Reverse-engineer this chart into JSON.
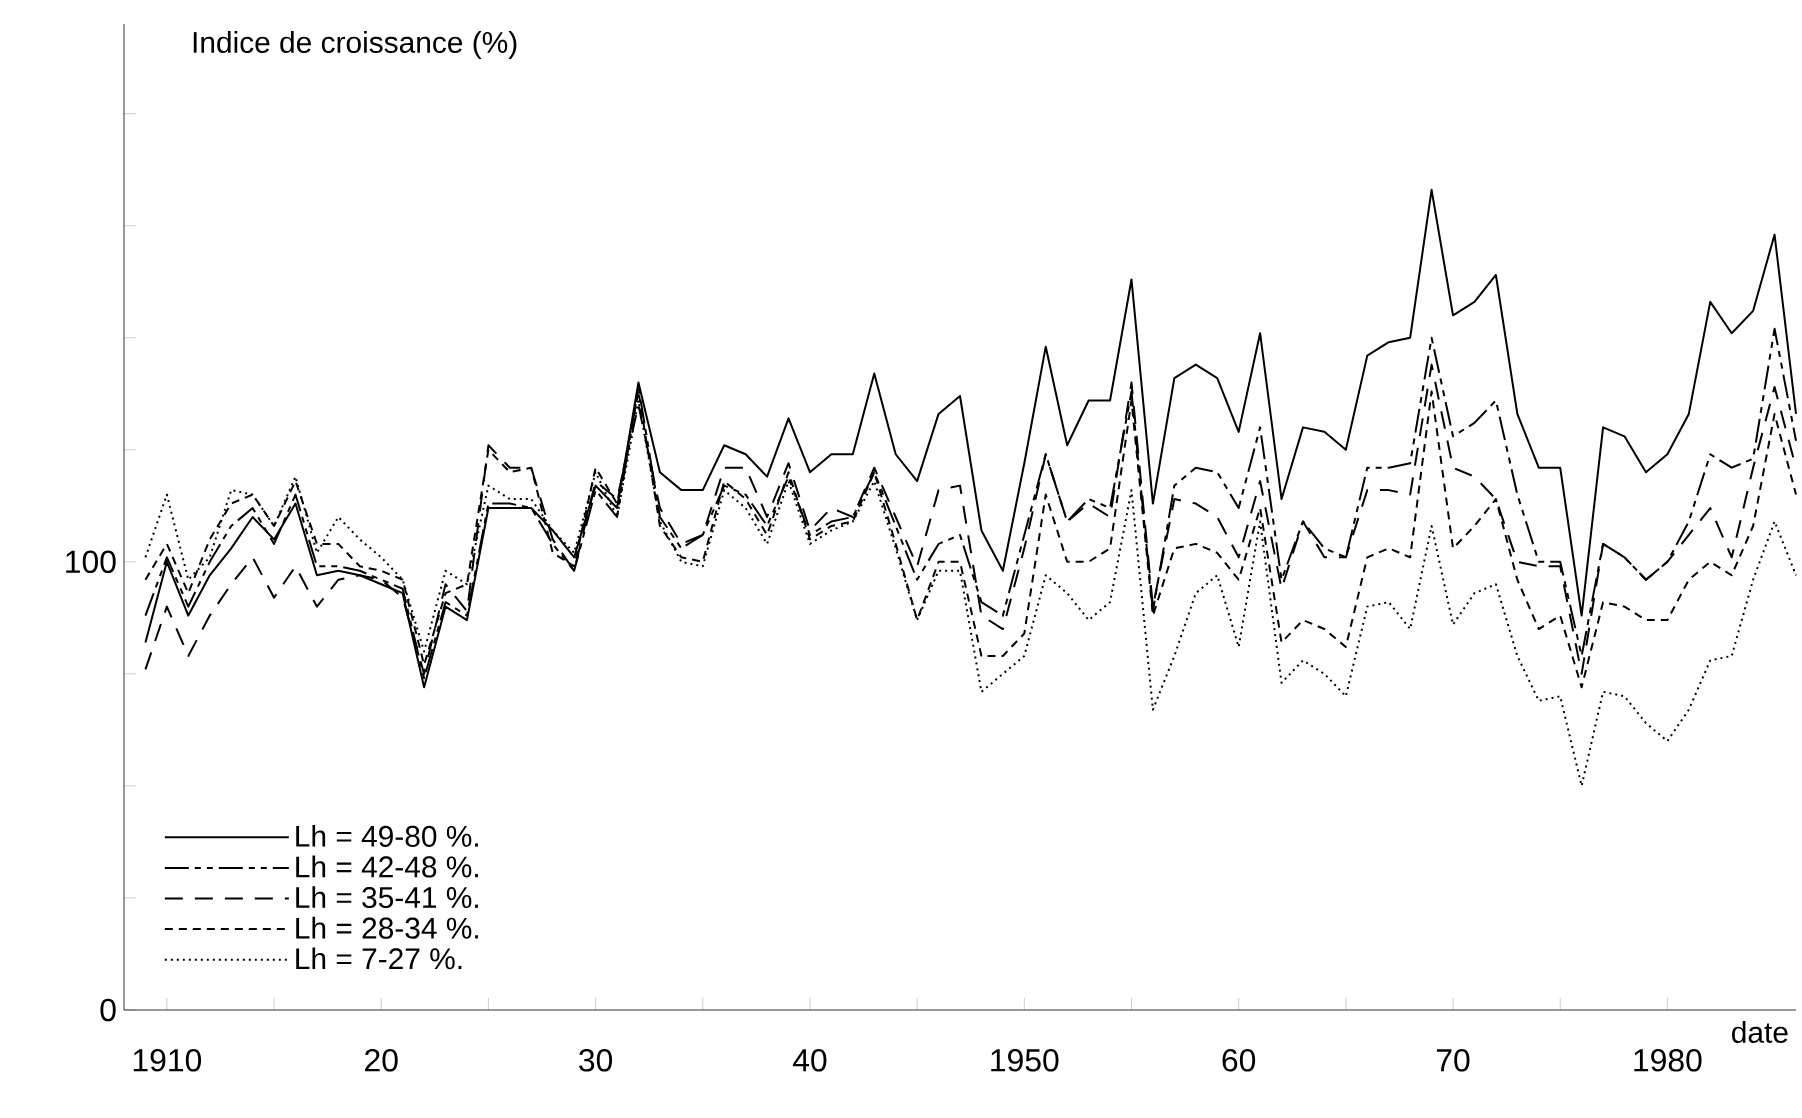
{
  "chart_data": {
    "type": "line",
    "ylabel": "Indice de croissance (%)",
    "xlabel": "date",
    "x": [
      1909,
      1910,
      1911,
      1912,
      1913,
      1914,
      1915,
      1916,
      1917,
      1918,
      1919,
      1920,
      1921,
      1922,
      1923,
      1924,
      1925,
      1926,
      1927,
      1928,
      1929,
      1930,
      1931,
      1932,
      1933,
      1934,
      1935,
      1936,
      1937,
      1938,
      1939,
      1940,
      1941,
      1942,
      1943,
      1944,
      1945,
      1946,
      1947,
      1948,
      1949,
      1950,
      1951,
      1952,
      1953,
      1954,
      1955,
      1956,
      1957,
      1958,
      1959,
      1960,
      1961,
      1962,
      1963,
      1964,
      1965,
      1966,
      1967,
      1968,
      1969,
      1970,
      1971,
      1972,
      1973,
      1974,
      1975,
      1976,
      1977,
      1978,
      1979,
      1980,
      1981,
      1982,
      1983,
      1984,
      1985,
      1986
    ],
    "series": [
      {
        "name": "Lh = 49-80 %.",
        "color": "#000000",
        "line_style": "solid",
        "values": [
          82,
          100,
          88,
          97,
          103,
          110,
          105,
          113,
          97,
          98,
          97,
          95,
          93,
          72,
          90,
          87,
          112,
          112,
          112,
          107,
          101,
          117,
          112,
          140,
          120,
          116,
          116,
          126,
          124,
          119,
          132,
          120,
          124,
          124,
          142,
          124,
          118,
          133,
          137,
          107,
          98,
          122,
          148,
          126,
          136,
          136,
          163,
          113,
          141,
          144,
          141,
          129,
          151,
          114,
          130,
          129,
          125,
          146,
          149,
          150,
          183,
          155,
          158,
          164,
          133,
          121,
          121,
          88,
          130,
          128,
          120,
          124,
          133,
          158,
          151,
          156,
          173,
          133
        ]
      },
      {
        "name": "Lh = 42-48 %.",
        "color": "#000000",
        "line_style": "dashdot",
        "values": [
          88,
          101,
          90,
          100,
          108,
          112,
          104,
          115,
          99,
          99,
          98,
          96,
          94,
          74,
          91,
          88,
          113,
          113,
          112,
          104,
          98,
          116,
          110,
          139,
          110,
          103,
          106,
          117,
          115,
          108,
          119,
          106,
          109,
          110,
          120,
          108,
          96,
          104,
          106,
          91,
          88,
          106,
          124,
          109,
          114,
          112,
          138,
          89,
          117,
          121,
          120,
          112,
          130,
          96,
          109,
          103,
          101,
          121,
          121,
          122,
          150,
          128,
          131,
          136,
          115,
          100,
          100,
          79,
          104,
          101,
          96,
          100,
          109,
          124,
          121,
          123,
          152,
          127
        ]
      },
      {
        "name": "Lh = 35-41 %.",
        "color": "#000000",
        "line_style": "longdash",
        "values": [
          76,
          90,
          79,
          88,
          95,
          101,
          92,
          99,
          90,
          96,
          97,
          96,
          92,
          75,
          95,
          89,
          126,
          121,
          121,
          105,
          98,
          118,
          114,
          135,
          112,
          104,
          106,
          121,
          121,
          110,
          122,
          107,
          112,
          110,
          121,
          110,
          99,
          116,
          117,
          88,
          85,
          103,
          124,
          109,
          113,
          110,
          140,
          90,
          114,
          113,
          110,
          101,
          118,
          94,
          109,
          101,
          101,
          116,
          116,
          115,
          144,
          121,
          119,
          114,
          100,
          99,
          99,
          75,
          104,
          101,
          96,
          100,
          106,
          112,
          101,
          121,
          139,
          121
        ]
      },
      {
        "name": "Lh = 28-34 %.",
        "color": "#000000",
        "line_style": "dashed",
        "values": [
          96,
          104,
          93,
          105,
          113,
          115,
          108,
          118,
          104,
          104,
          99,
          98,
          96,
          77,
          93,
          95,
          125,
          120,
          121,
          102,
          99,
          121,
          113,
          138,
          108,
          101,
          100,
          118,
          114,
          106,
          120,
          105,
          108,
          109,
          120,
          104,
          87,
          100,
          100,
          79,
          79,
          84,
          115,
          100,
          100,
          103,
          136,
          88,
          103,
          104,
          102,
          96,
          112,
          82,
          87,
          85,
          81,
          101,
          103,
          101,
          138,
          103,
          108,
          114,
          96,
          85,
          88,
          72,
          91,
          90,
          87,
          87,
          96,
          100,
          97,
          108,
          133,
          115
        ]
      },
      {
        "name": "Lh = 7-27 %.",
        "color": "#000000",
        "line_style": "dotted",
        "values": [
          101,
          115,
          96,
          101,
          116,
          115,
          108,
          119,
          102,
          110,
          105,
          101,
          96,
          80,
          98,
          95,
          117,
          114,
          114,
          107,
          102,
          120,
          110,
          136,
          109,
          100,
          99,
          116,
          112,
          104,
          118,
          104,
          107,
          109,
          118,
          103,
          87,
          98,
          98,
          71,
          75,
          79,
          97,
          93,
          87,
          91,
          116,
          67,
          79,
          93,
          97,
          81,
          109,
          73,
          78,
          75,
          70,
          90,
          91,
          85,
          108,
          86,
          93,
          95,
          79,
          69,
          70,
          50,
          71,
          70,
          64,
          60,
          67,
          78,
          79,
          96,
          109,
          97
        ]
      }
    ],
    "xlim": [
      1908,
      1986
    ],
    "ylim": [
      0,
      220
    ],
    "xticks": [
      1910,
      {
        "value": 1915,
        "label": null
      },
      {
        "value": 1920,
        "label": "20"
      },
      {
        "value": 1925,
        "label": null
      },
      {
        "value": 1930,
        "label": "30"
      },
      {
        "value": 1935,
        "label": null
      },
      {
        "value": 1940,
        "label": "40"
      },
      {
        "value": 1945,
        "label": null
      },
      1950,
      {
        "value": 1955,
        "label": null
      },
      {
        "value": 1960,
        "label": "60"
      },
      {
        "value": 1965,
        "label": null
      },
      {
        "value": 1970,
        "label": "70"
      },
      {
        "value": 1975,
        "label": null
      },
      1980
    ],
    "yticks": [
      0,
      {
        "value": 25,
        "label": null
      },
      {
        "value": 50,
        "label": null
      },
      {
        "value": 75,
        "label": null
      },
      100,
      {
        "value": 125,
        "label": null
      },
      {
        "value": 150,
        "label": null
      },
      {
        "value": 175,
        "label": null
      },
      {
        "value": 200,
        "label": null
      }
    ],
    "legend": "bottom left"
  }
}
